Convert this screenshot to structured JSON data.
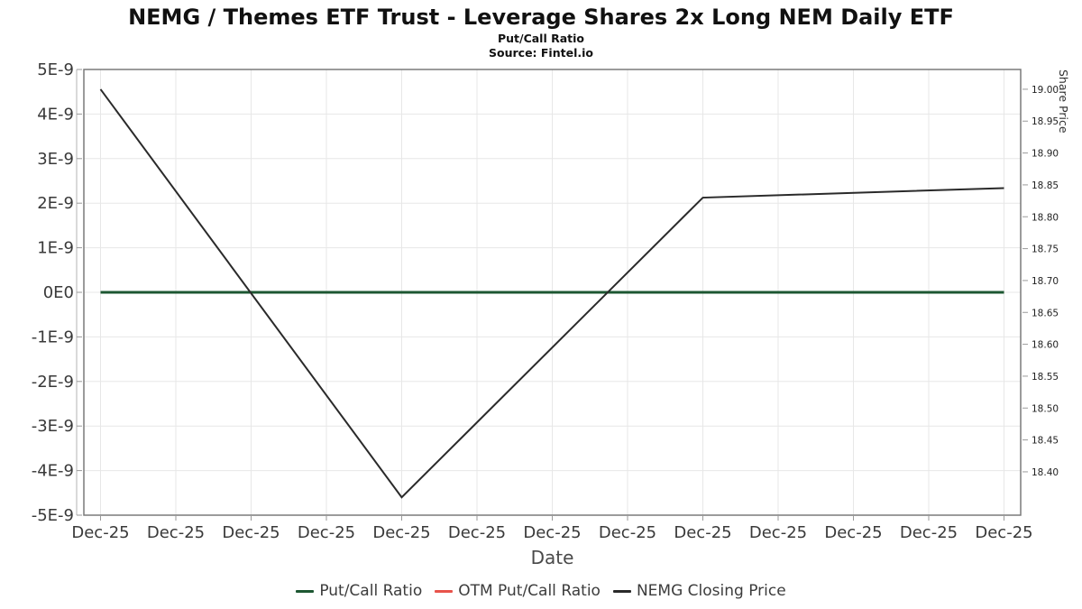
{
  "title": "NEMG / Themes ETF Trust - Leverage Shares 2x Long NEM Daily ETF",
  "subtitle": "Put/Call Ratio",
  "source": "Source: Fintel.io",
  "chart_data": {
    "type": "line",
    "xlabel": "Date",
    "x_categories": [
      "Dec-25",
      "Dec-25",
      "Dec-25",
      "Dec-25",
      "Dec-25",
      "Dec-25",
      "Dec-25",
      "Dec-25",
      "Dec-25",
      "Dec-25",
      "Dec-25",
      "Dec-25",
      "Dec-25"
    ],
    "grid": true,
    "legend_position": "bottom",
    "left_axis": {
      "tick_labels": [
        "5E-9",
        "4E-9",
        "3E-9",
        "2E-9",
        "1E-9",
        "0E0",
        "-1E-9",
        "-2E-9",
        "-3E-9",
        "-4E-9",
        "-5E-9"
      ],
      "max": 5e-09,
      "min": -5e-09
    },
    "right_axis": {
      "label": "Share Price",
      "tick_labels": [
        "19.00",
        "18.95",
        "18.90",
        "18.85",
        "18.80",
        "18.75",
        "18.70",
        "18.65",
        "18.60",
        "18.55",
        "18.50",
        "18.45",
        "18.40"
      ],
      "tick_values": [
        19.0,
        18.95,
        18.9,
        18.85,
        18.8,
        18.75,
        18.7,
        18.65,
        18.6,
        18.55,
        18.5,
        18.45,
        18.4
      ],
      "range": [
        18.332,
        19.031
      ]
    },
    "series": [
      {
        "name": "Put/Call Ratio",
        "axis": "left",
        "color": "#1d5732",
        "line_width": 3,
        "x_indices": [
          0,
          1,
          2,
          3,
          4,
          5,
          6,
          7,
          8,
          9,
          10,
          11,
          12
        ],
        "values": [
          0,
          0,
          0,
          0,
          0,
          0,
          0,
          0,
          0,
          0,
          0,
          0,
          0
        ]
      },
      {
        "name": "OTM Put/Call Ratio",
        "axis": "left",
        "color": "#e8534b",
        "line_width": 2,
        "x_indices": [],
        "values": [],
        "visible": false
      },
      {
        "name": "NEMG Closing Price",
        "axis": "right",
        "color": "#2a2a2a",
        "line_width": 2,
        "x_indices": [
          0,
          4,
          8,
          12
        ],
        "values": [
          19.0,
          18.36,
          18.83,
          18.845
        ]
      }
    ]
  }
}
